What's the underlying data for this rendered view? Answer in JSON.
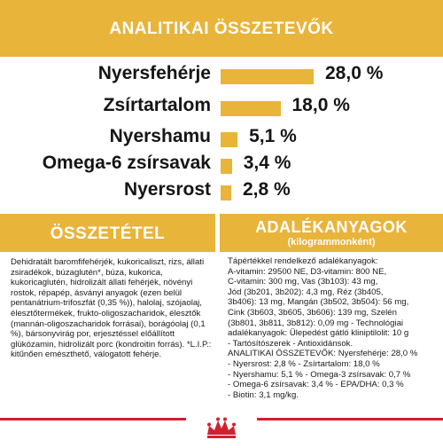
{
  "header": {
    "title": "ANALITIKAI ÖSSZETEVŐK"
  },
  "analysis": {
    "rows": [
      {
        "label": "Nyersfehérje",
        "value": "28,0 %",
        "percent": 28.0
      },
      {
        "label": "Zsírtartalom",
        "value": "18,0 %",
        "percent": 18.0
      },
      {
        "label": "Nyershamu",
        "value": "5,1 %",
        "percent": 5.1
      },
      {
        "label": "Omega-6 zsírsavak",
        "value": "3,4 %",
        "percent": 3.4
      },
      {
        "label": "Nyersrost",
        "value": "2,8 %",
        "percent": 2.8
      }
    ]
  },
  "composition": {
    "title": "ÖSSZETÉTEL",
    "text": "Dehidratált baromfifehérjék, kukoricaliszt, rizs, állati zsiradékok, búzaglutén*, búza, kukorica, kukoricaglutén, hidrolizált állati fehérjék, növényi rostok, répapép, ásványi anyagok (ezen belül pentanátrium-trifoszfát (0,35 %)), halolaj, szójaolaj, élesztőtermékek, frukto-oligoszacharidok, élesztők (mannán-oligoszacharidok forrásai), borágóolaj (0,1 %), bársonyvirág por, erjesztéssel előállított glükózamin, hidrolizált porc (kondroitin forrás). *L.I.P.: kitűnően emészthető, válogatott fehérje."
  },
  "additives": {
    "title": "ADALÉKANYAGOK",
    "subtitle": "(kilogrammonként)",
    "lines": [
      "Tápértékkel rendelkező adalékanyagok:",
      "A-vitamin: 29500 NE, D3-vitamin: 800 NE,",
      "C-vitamin: 300 mg, Vas (3b103): 43 mg,",
      "Jód (3b201, 3b202): 4,3 mg, Réz (3b405,",
      "3b406): 13 mg, Mangán (3b502, 3b504): 56 mg,",
      "Cink (3b603, 3b605, 3b606): 139 mg, Szelén",
      "(3b801, 3b811, 3b812): 0,09 mg - Technológiai",
      "adalékanyagok: Ülepedést gátló kliniptilolit: 10 g",
      "- Tartósítószerek - Antioxidánsok.",
      "ANALITIKAI ÖSSZETEVŐK: Nyersfehérje: 28,0 %",
      "- Nyersrost: 2,8 % - Zsírtartalom: 18,0 %",
      "- Nyershamu: 5,1 % - Omega-3 zsírsavak: 0,7 %",
      "- Omega-6 zsírsavak: 3,4 % - EPA/DHA: 0,3 %",
      "- Biotin: 3,1 mg/kg."
    ]
  },
  "colors": {
    "accent": "#e8b43a",
    "brand_red": "#d2202f"
  },
  "icons": {
    "logo": "royal-canin-crown-icon"
  }
}
